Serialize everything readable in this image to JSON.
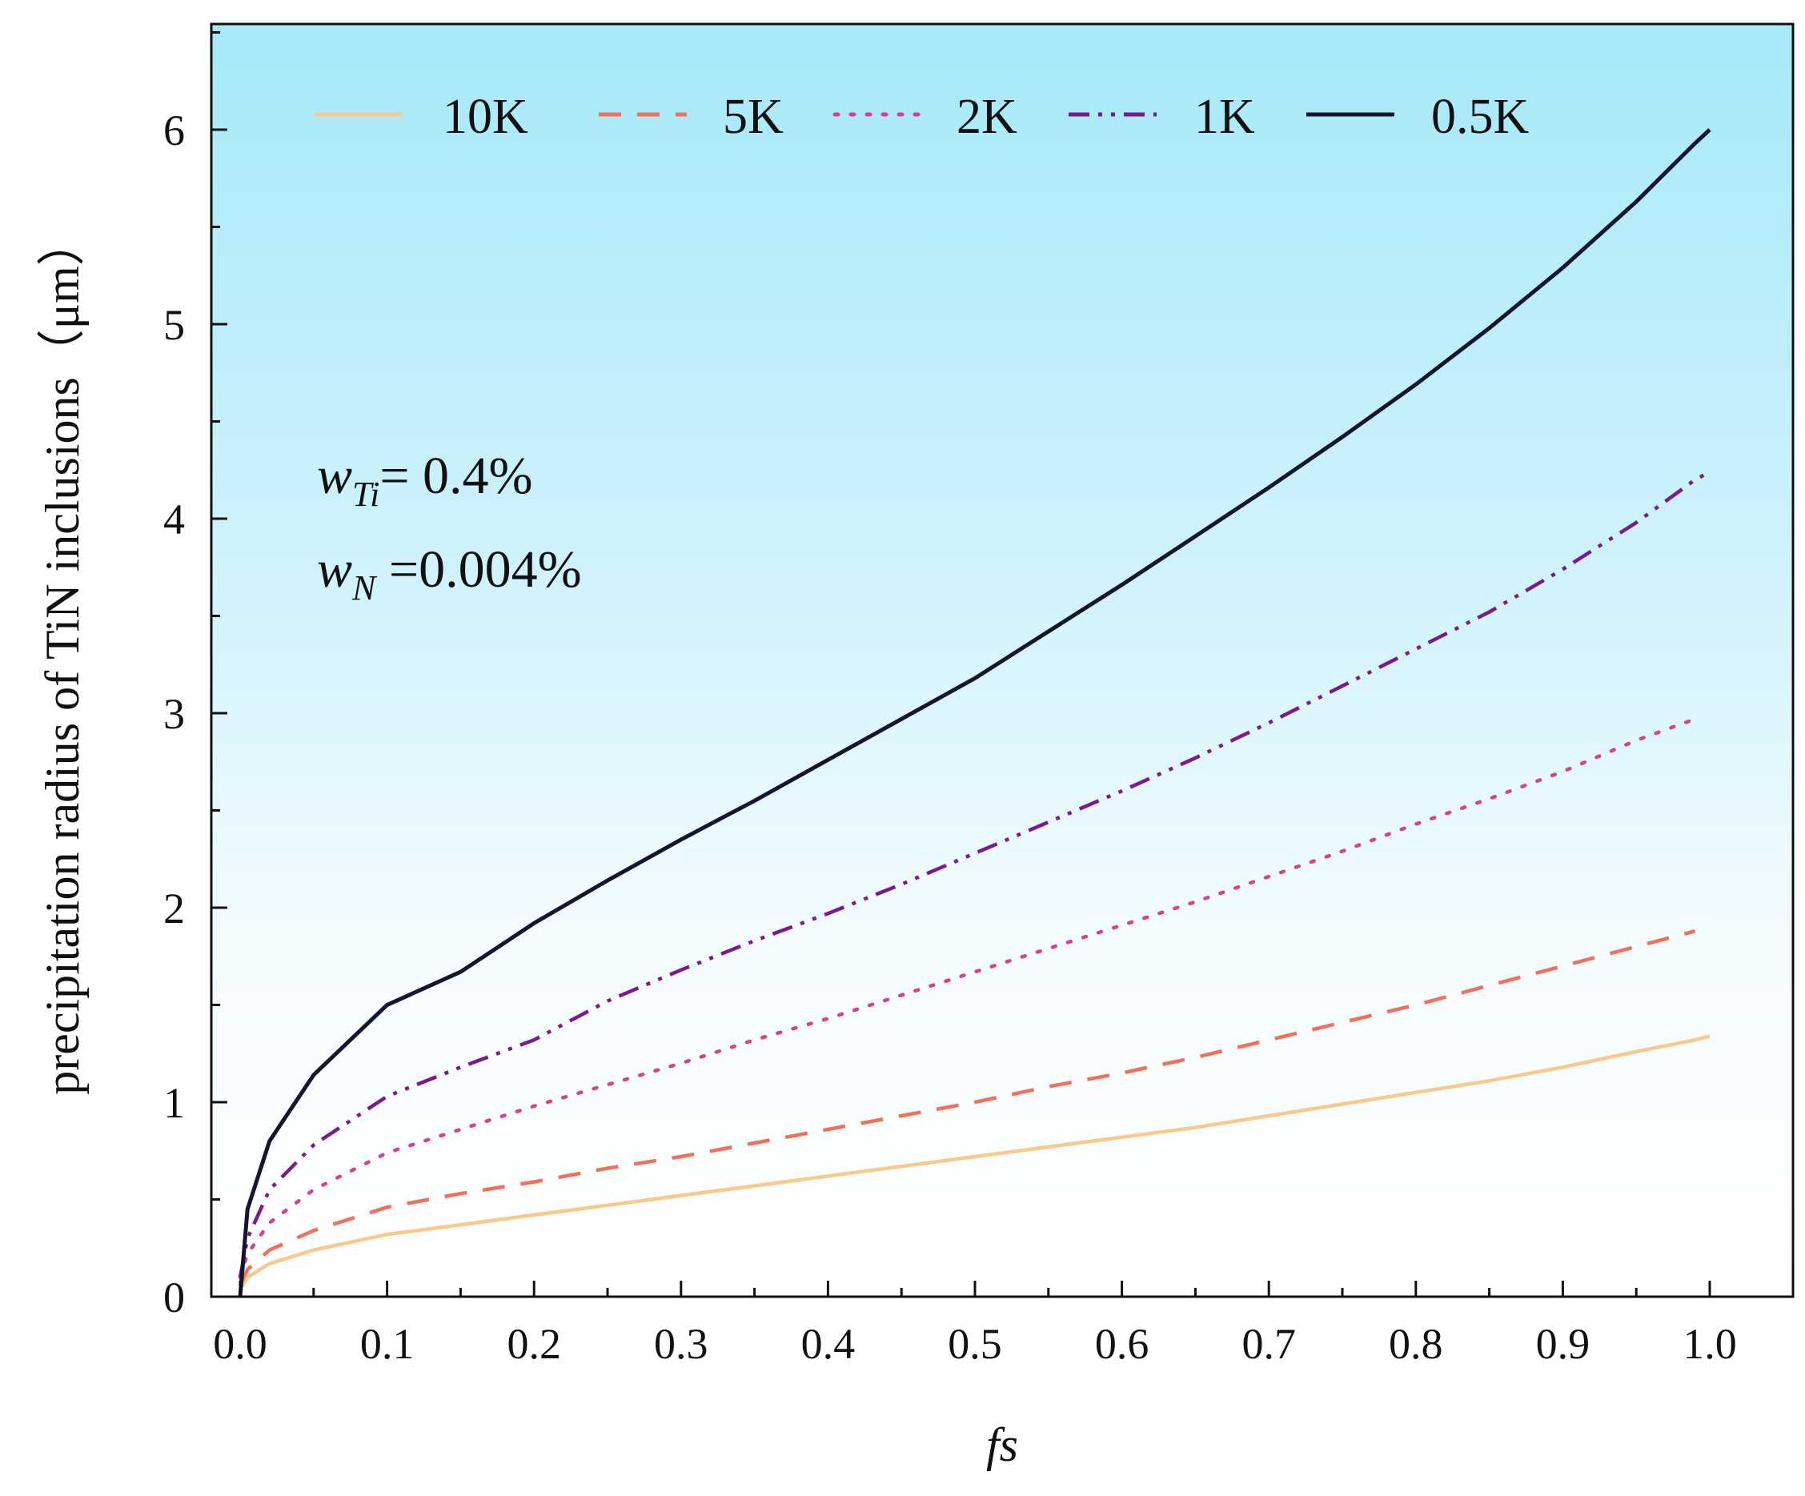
{
  "chart_data": {
    "type": "line",
    "title": "",
    "xlabel": "fs",
    "ylabel": "precipitation radius of TiN inclusions（μm）",
    "xlim": [
      -0.02,
      1.03
    ],
    "ylim": [
      0,
      6.5
    ],
    "xticks": [
      "0.0",
      "0.1",
      "0.2",
      "0.3",
      "0.4",
      "0.5",
      "0.6",
      "0.7",
      "0.8",
      "0.9",
      "1.0"
    ],
    "yticks": [
      "0",
      "1",
      "2",
      "3",
      "4",
      "5",
      "6"
    ],
    "grid": false,
    "legend_position": "top",
    "x": [
      0.0,
      0.005,
      0.02,
      0.05,
      0.1,
      0.15,
      0.2,
      0.25,
      0.3,
      0.35,
      0.4,
      0.45,
      0.5,
      0.55,
      0.6,
      0.65,
      0.7,
      0.75,
      0.8,
      0.85,
      0.9,
      0.95,
      0.99,
      1.0
    ],
    "series": [
      {
        "name": "10K",
        "style": "solid",
        "color": "#f9c98c",
        "values": [
          0.04,
          0.1,
          0.17,
          0.24,
          0.32,
          0.37,
          0.42,
          0.47,
          0.52,
          0.57,
          0.62,
          0.67,
          0.72,
          0.77,
          0.82,
          0.87,
          0.93,
          0.99,
          1.05,
          1.11,
          1.18,
          1.26,
          1.32,
          1.34
        ]
      },
      {
        "name": "5K",
        "style": "dashed",
        "color": "#f2705a",
        "values": [
          0.06,
          0.14,
          0.24,
          0.34,
          0.46,
          0.53,
          0.59,
          0.66,
          0.72,
          0.79,
          0.86,
          0.93,
          1.0,
          1.08,
          1.15,
          1.23,
          1.32,
          1.41,
          1.5,
          1.6,
          1.7,
          1.8,
          1.88,
          null
        ]
      },
      {
        "name": "2K",
        "style": "dotted",
        "color": "#d6408c",
        "values": [
          0.1,
          0.22,
          0.38,
          0.55,
          0.74,
          0.86,
          0.98,
          1.09,
          1.2,
          1.32,
          1.43,
          1.55,
          1.67,
          1.79,
          1.91,
          2.03,
          2.16,
          2.29,
          2.43,
          2.56,
          2.7,
          2.86,
          2.97,
          null
        ]
      },
      {
        "name": "1K",
        "style": "dash-dot-dot",
        "color": "#7a1a8c",
        "values": [
          0.1,
          0.3,
          0.55,
          0.78,
          1.03,
          1.18,
          1.32,
          1.52,
          1.68,
          1.83,
          1.97,
          2.12,
          2.28,
          2.44,
          2.6,
          2.77,
          2.95,
          3.14,
          3.33,
          3.52,
          3.74,
          3.98,
          4.2,
          4.24
        ]
      },
      {
        "name": "0.5K",
        "style": "solid",
        "color": "#151530",
        "values": [
          0.0,
          0.45,
          0.8,
          1.14,
          1.5,
          1.67,
          1.92,
          2.14,
          2.35,
          2.55,
          2.76,
          2.97,
          3.18,
          3.42,
          3.66,
          3.91,
          4.16,
          4.42,
          4.69,
          4.98,
          5.29,
          5.63,
          5.93,
          6.0
        ]
      }
    ],
    "annotations": [
      {
        "main": "w",
        "sub": "Ti",
        "rest": "= 0.4%"
      },
      {
        "main": "w",
        "sub": "N",
        "rest": " =0.004%"
      }
    ]
  }
}
